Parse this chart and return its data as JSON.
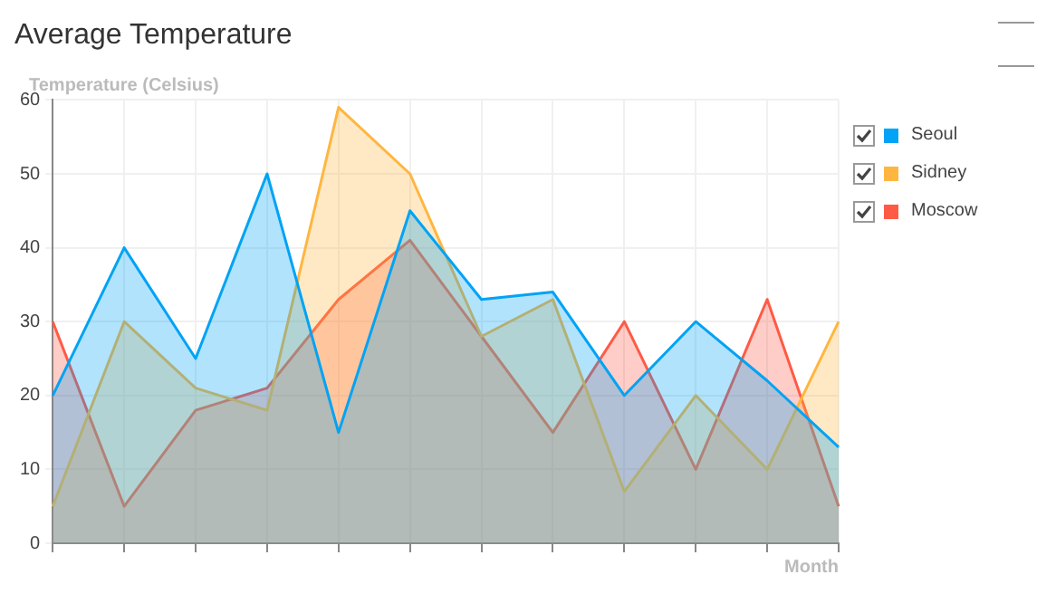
{
  "chart_data": {
    "type": "area",
    "title": "Average Temperature",
    "ylabel": "Temperature (Celsius)",
    "xlabel": "Month",
    "categories": [
      null,
      null,
      null,
      null,
      null,
      null,
      null,
      null,
      null,
      null,
      null,
      null
    ],
    "series": [
      {
        "name": "Seoul",
        "color": "#00a3f5",
        "values": [
          20,
          40,
          25,
          50,
          15,
          45,
          33,
          34,
          20,
          30,
          22,
          13
        ]
      },
      {
        "name": "Sidney",
        "color": "#ffb640",
        "values": [
          5,
          30,
          21,
          18,
          59,
          50,
          28,
          33,
          7,
          20,
          10,
          30
        ]
      },
      {
        "name": "Moscow",
        "color": "#ff5a45",
        "values": [
          30,
          5,
          18,
          21,
          33,
          41,
          28,
          15,
          30,
          10,
          33,
          5
        ]
      }
    ],
    "ylim": [
      0,
      60
    ],
    "yticks": [
      0,
      10,
      20,
      30,
      40,
      50,
      60
    ],
    "grid": true,
    "legend": "right",
    "marker": "none",
    "line_style": "solid"
  }
}
